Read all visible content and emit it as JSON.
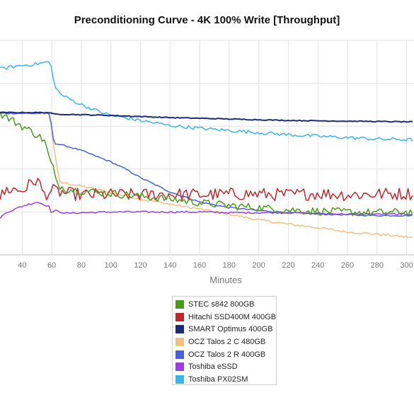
{
  "chart_data": {
    "type": "line",
    "title": "Preconditioning Curve - 4K 100% Write [Throughput]",
    "xlabel": "Minutes",
    "ylabel": "",
    "xlim": [
      25,
      305
    ],
    "ylim": [
      0,
      15
    ],
    "x_ticks": [
      40,
      60,
      80,
      100,
      120,
      140,
      160,
      180,
      200,
      220,
      240,
      260,
      280,
      300
    ],
    "grid": true,
    "legend_position": "bottom",
    "series": [
      {
        "name": "STEC s842 800GB",
        "color": "#4c9a1b",
        "x": [
          25,
          30,
          40,
          50,
          55,
          59,
          61,
          62,
          65,
          70,
          80,
          90,
          100,
          120,
          140,
          160,
          180,
          200,
          220,
          240,
          260,
          280,
          305
        ],
        "y": [
          9.9,
          9.6,
          9.0,
          8.4,
          8.0,
          6.5,
          6.1,
          5.3,
          4.85,
          4.6,
          4.5,
          4.4,
          4.3,
          4.1,
          3.9,
          3.65,
          3.45,
          3.3,
          3.15,
          3.05,
          3.0,
          2.95,
          3.0
        ],
        "noise": 0.28
      },
      {
        "name": "Hitachi SSD400M 400GB",
        "color": "#c0272d",
        "x": [
          25,
          30,
          40,
          45,
          50,
          55,
          60,
          70,
          80,
          100,
          120,
          140,
          160,
          180,
          200,
          220,
          240,
          260,
          280,
          305
        ],
        "y": [
          4.0,
          4.6,
          4.5,
          4.9,
          5.3,
          4.2,
          4.5,
          4.3,
          4.2,
          4.2,
          4.2,
          4.25,
          4.2,
          4.25,
          4.25,
          4.2,
          4.3,
          4.2,
          4.25,
          4.3
        ],
        "noise": 0.45
      },
      {
        "name": "SMART Optimus 400GB",
        "color": "#1a2b78",
        "x": [
          25,
          59,
          60,
          100,
          140,
          180,
          220,
          260,
          305
        ],
        "y": [
          9.95,
          9.95,
          9.85,
          9.75,
          9.6,
          9.5,
          9.4,
          9.35,
          9.3
        ],
        "noise": 0.03
      },
      {
        "name": "OCZ Talos 2 C 480GB",
        "color": "#f2c081",
        "x": [
          25,
          59,
          60,
          65,
          70,
          80,
          90,
          100,
          120,
          140,
          160,
          180,
          200,
          220,
          240,
          260,
          280,
          300,
          305
        ],
        "y": [
          9.9,
          9.9,
          8.6,
          5.1,
          5.0,
          4.8,
          4.6,
          4.35,
          3.9,
          3.55,
          3.2,
          2.85,
          2.45,
          2.15,
          1.9,
          1.6,
          1.45,
          1.25,
          1.2
        ],
        "noise": 0.08
      },
      {
        "name": "OCZ Talos 2 R 400GB",
        "color": "#4a5fdc",
        "x": [
          25,
          59,
          60,
          62,
          70,
          80,
          90,
          100,
          110,
          120,
          140,
          160,
          180,
          200,
          220,
          240,
          260,
          280,
          305
        ],
        "y": [
          9.9,
          9.9,
          8.5,
          7.8,
          7.6,
          7.3,
          6.9,
          6.5,
          6.0,
          5.4,
          4.4,
          3.7,
          3.3,
          3.1,
          2.95,
          2.85,
          2.8,
          2.75,
          2.75
        ],
        "noise": 0.05
      },
      {
        "name": "Toshiba eSSD",
        "color": "#9b40e0",
        "x": [
          25,
          30,
          40,
          50,
          58,
          60,
          62,
          70,
          80,
          100,
          120,
          140,
          160,
          180,
          200,
          220,
          240,
          260,
          280,
          305
        ],
        "y": [
          2.6,
          3.0,
          3.4,
          3.7,
          3.4,
          2.9,
          3.1,
          2.9,
          2.95,
          3.0,
          3.0,
          3.0,
          3.0,
          2.95,
          2.95,
          2.95,
          2.9,
          2.85,
          2.85,
          2.85
        ],
        "noise": 0.06
      },
      {
        "name": "Toshiba PX02SM",
        "color": "#38b6ea",
        "x": [
          25,
          30,
          40,
          50,
          58,
          59,
          60,
          62,
          65,
          70,
          80,
          90,
          100,
          120,
          140,
          160,
          180,
          200,
          220,
          240,
          260,
          280,
          305
        ],
        "y": [
          13.0,
          13.1,
          13.25,
          13.35,
          13.5,
          13.6,
          12.7,
          11.9,
          11.3,
          11.0,
          10.5,
          10.1,
          9.75,
          9.4,
          9.05,
          8.85,
          8.7,
          8.55,
          8.4,
          8.3,
          8.2,
          8.1,
          8.05
        ],
        "noise": 0.12
      }
    ]
  }
}
